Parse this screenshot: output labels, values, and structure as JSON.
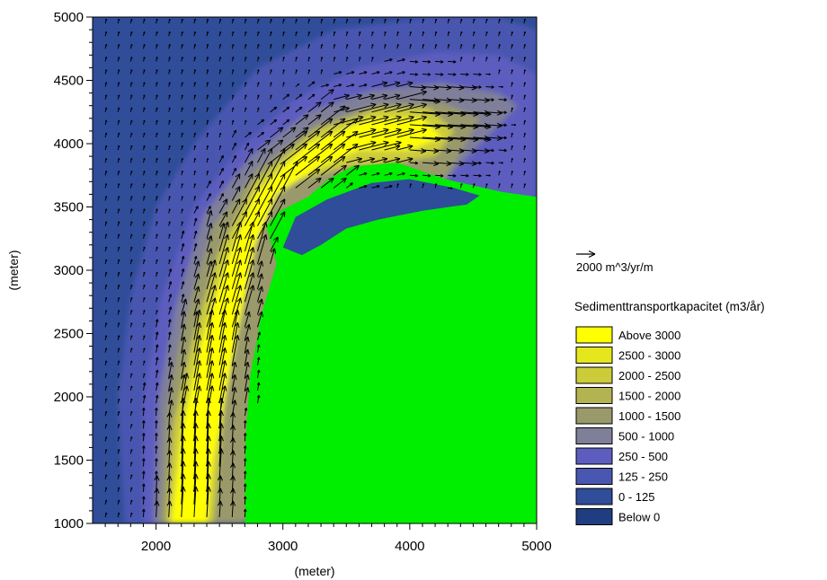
{
  "chart_data": {
    "type": "heatmap",
    "x_axis": {
      "label": "(meter)",
      "range": [
        1500,
        5000
      ],
      "ticks": [
        2000,
        3000,
        4000,
        5000
      ],
      "tick_labels": [
        "2000",
        "3000",
        "4000",
        "5000"
      ]
    },
    "y_axis": {
      "label": "(meter)",
      "range": [
        1000,
        5000
      ],
      "ticks": [
        1000,
        1500,
        2000,
        2500,
        3000,
        3500,
        4000,
        4500,
        5000
      ],
      "tick_labels": [
        "1000",
        "1500",
        "2000",
        "2500",
        "3000",
        "3500",
        "4000",
        "4500",
        "5000"
      ]
    },
    "vector_scale": {
      "label": "2000 m^3/yr/m",
      "value": 2000
    },
    "legend": {
      "title": "Sedimenttransportkapacitet (m3/år)",
      "placement": "right",
      "classes": [
        {
          "label": "Above 3000",
          "color": "#ffff00"
        },
        {
          "label": "2500 - 3000",
          "color": "#e6e61e"
        },
        {
          "label": "2000 - 2500",
          "color": "#cccc3a"
        },
        {
          "label": "1500 - 2000",
          "color": "#b3b352"
        },
        {
          "label": "1000 - 1500",
          "color": "#99996c"
        },
        {
          "label": "500 - 1000",
          "color": "#7f7f99"
        },
        {
          "label": "250 -  500",
          "color": "#5d5dbf"
        },
        {
          "label": "125 -  250",
          "color": "#4a57b0"
        },
        {
          "label": "0 -  125",
          "color": "#2f4d99"
        },
        {
          "label": "Below      0",
          "color": "#1f3d80"
        }
      ]
    },
    "colors": {
      "land": "#00ee00",
      "sea_background": "#2f4d99",
      "vector": "#000000"
    },
    "regions": {
      "land": [
        [
          2700,
          1000
        ],
        [
          2700,
          1600
        ],
        [
          2740,
          2150
        ],
        [
          2830,
          2650
        ],
        [
          2950,
          3050
        ],
        [
          2870,
          3350
        ],
        [
          2980,
          3470
        ],
        [
          3200,
          3580
        ],
        [
          3360,
          3720
        ],
        [
          3550,
          3820
        ],
        [
          3900,
          3850
        ],
        [
          4280,
          3720
        ],
        [
          4720,
          3620
        ],
        [
          5000,
          3580
        ],
        [
          5000,
          1000
        ]
      ],
      "harbour_water": [
        [
          3100,
          3420
        ],
        [
          3350,
          3560
        ],
        [
          3700,
          3690
        ],
        [
          4000,
          3720
        ],
        [
          4350,
          3650
        ],
        [
          4550,
          3590
        ],
        [
          4450,
          3520
        ],
        [
          4100,
          3470
        ],
        [
          3750,
          3400
        ],
        [
          3500,
          3330
        ],
        [
          3300,
          3200
        ],
        [
          3150,
          3120
        ],
        [
          3000,
          3180
        ]
      ],
      "band_125_250": [
        [
          1750,
          1000
        ],
        [
          1700,
          2000
        ],
        [
          1800,
          2800
        ],
        [
          2000,
          3500
        ],
        [
          2300,
          4000
        ],
        [
          2800,
          4600
        ],
        [
          3400,
          4900
        ],
        [
          4200,
          5000
        ],
        [
          4700,
          5000
        ],
        [
          5000,
          4900
        ],
        [
          5000,
          3580
        ],
        [
          2700,
          1000
        ]
      ],
      "band_250_500": [
        [
          1900,
          1000
        ],
        [
          1900,
          2000
        ],
        [
          2050,
          2800
        ],
        [
          2300,
          3500
        ],
        [
          2650,
          3950
        ],
        [
          3100,
          4350
        ],
        [
          3600,
          4600
        ],
        [
          4200,
          4720
        ],
        [
          4700,
          4700
        ],
        [
          5000,
          4550
        ],
        [
          5000,
          3580
        ],
        [
          2700,
          1000
        ]
      ],
      "band_500_1000": [
        [
          1980,
          1000
        ],
        [
          2020,
          2000
        ],
        [
          2150,
          2700
        ],
        [
          2380,
          3450
        ],
        [
          2750,
          3900
        ],
        [
          3200,
          4250
        ],
        [
          3700,
          4420
        ],
        [
          4250,
          4480
        ],
        [
          4700,
          4400
        ],
        [
          4850,
          4300
        ],
        [
          4280,
          3720
        ],
        [
          2700,
          1000
        ]
      ],
      "band_1000_2000": [
        [
          2030,
          1000
        ],
        [
          2080,
          1900
        ],
        [
          2220,
          2600
        ],
        [
          2450,
          3350
        ],
        [
          2800,
          3800
        ],
        [
          3250,
          4150
        ],
        [
          3750,
          4320
        ],
        [
          4250,
          4330
        ],
        [
          4550,
          4200
        ],
        [
          4280,
          3720
        ],
        [
          2700,
          1000
        ]
      ],
      "band_2000_3000": [
        [
          2080,
          1000
        ],
        [
          2140,
          1800
        ],
        [
          2300,
          2500
        ],
        [
          2500,
          3150
        ],
        [
          2780,
          3700
        ],
        [
          3250,
          4100
        ],
        [
          3750,
          4280
        ],
        [
          4150,
          4280
        ],
        [
          4350,
          4100
        ],
        [
          4200,
          3900
        ],
        [
          3900,
          3850
        ],
        [
          3500,
          3820
        ],
        [
          3150,
          3720
        ],
        [
          2900,
          3650
        ],
        [
          2760,
          3350
        ],
        [
          2580,
          2400
        ],
        [
          2500,
          1500
        ],
        [
          2450,
          1000
        ]
      ],
      "band_above_3000": [
        [
          2120,
          1000
        ],
        [
          2200,
          1700
        ],
        [
          2350,
          2400
        ],
        [
          2550,
          3050
        ],
        [
          2780,
          3600
        ],
        [
          3200,
          4000
        ],
        [
          3700,
          4200
        ],
        [
          4100,
          4200
        ],
        [
          4250,
          4050
        ],
        [
          4000,
          3950
        ],
        [
          3600,
          3950
        ],
        [
          3250,
          3800
        ],
        [
          2950,
          3600
        ],
        [
          2780,
          3200
        ],
        [
          2620,
          2400
        ],
        [
          2450,
          1500
        ],
        [
          2400,
          1000
        ]
      ]
    },
    "title": ""
  }
}
